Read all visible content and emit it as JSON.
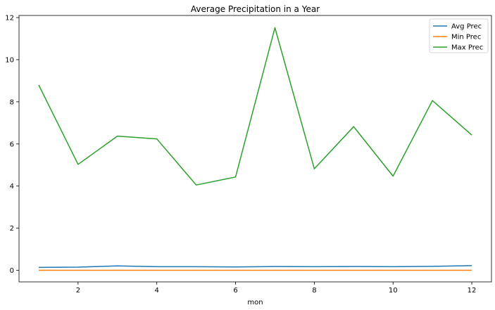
{
  "chart_data": {
    "type": "line",
    "title": "Average Precipitation in a Year",
    "xlabel": "mon",
    "ylabel": "",
    "x": [
      1,
      2,
      3,
      4,
      5,
      6,
      7,
      8,
      9,
      10,
      11,
      12
    ],
    "xlim": [
      0.5,
      12.5
    ],
    "ylim": [
      -0.55,
      12.1
    ],
    "xticks": [
      2,
      4,
      6,
      8,
      10,
      12
    ],
    "yticks": [
      0,
      2,
      4,
      6,
      8,
      10,
      12
    ],
    "grid": false,
    "legend_position": "top-right",
    "series": [
      {
        "name": "Avg Prec",
        "color": "#1f77b4",
        "values": [
          0.14,
          0.15,
          0.21,
          0.17,
          0.17,
          0.16,
          0.18,
          0.17,
          0.18,
          0.17,
          0.19,
          0.22
        ]
      },
      {
        "name": "Min Prec",
        "color": "#ff7f0e",
        "values": [
          0.0,
          0.0,
          0.0,
          0.0,
          0.0,
          0.0,
          0.0,
          0.0,
          0.0,
          0.0,
          0.0,
          0.0
        ]
      },
      {
        "name": "Max Prec",
        "color": "#2ca02c",
        "values": [
          8.8,
          5.03,
          6.37,
          6.24,
          4.05,
          4.43,
          11.52,
          4.82,
          6.82,
          4.47,
          8.06,
          6.42
        ]
      }
    ]
  }
}
